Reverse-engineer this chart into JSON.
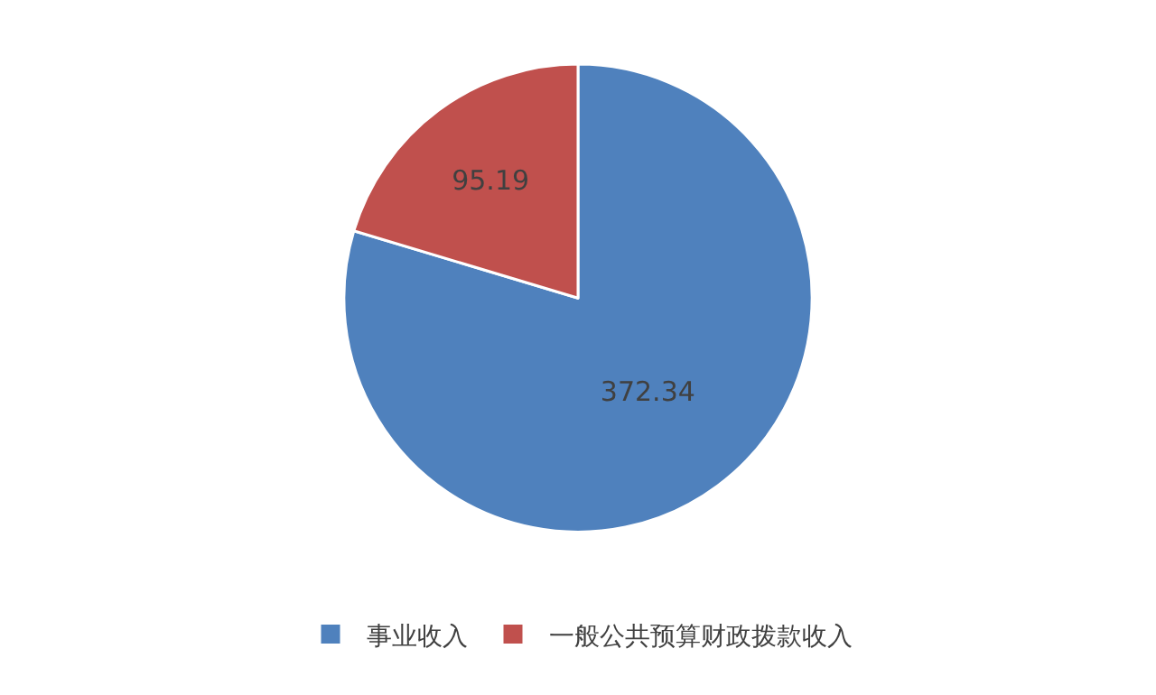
{
  "chart_data": {
    "type": "pie",
    "categories": [
      "事业收入",
      "一般公共预算财政拨款收入"
    ],
    "values": [
      372.34,
      95.19
    ],
    "colors": [
      "#4f81bd",
      "#c0504d"
    ],
    "data_labels": true,
    "legend": "bottom"
  }
}
